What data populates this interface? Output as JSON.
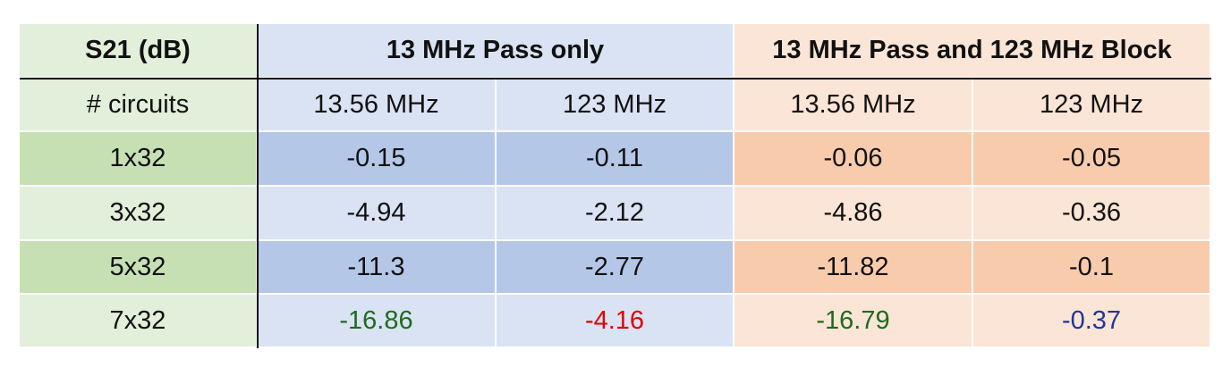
{
  "table": {
    "header": [
      "S21 (dB)",
      "13 MHz Pass only",
      "13 MHz Pass and 123 MHz Block"
    ],
    "subheader": [
      "# circuits",
      "13.56 MHz",
      "123 MHz",
      "13.56 MHz",
      "123 MHz"
    ],
    "rows": [
      [
        "1x32",
        "-0.15",
        "-0.11",
        "-0.06",
        "-0.05"
      ],
      [
        "3x32",
        "-4.94",
        "-2.12",
        "-4.86",
        "-0.36"
      ],
      [
        "5x32",
        "-11.3",
        "-2.77",
        "-11.82",
        "-0.1"
      ],
      [
        "7x32",
        "-16.86",
        "-4.16",
        "-16.79",
        "-0.37"
      ]
    ]
  }
}
